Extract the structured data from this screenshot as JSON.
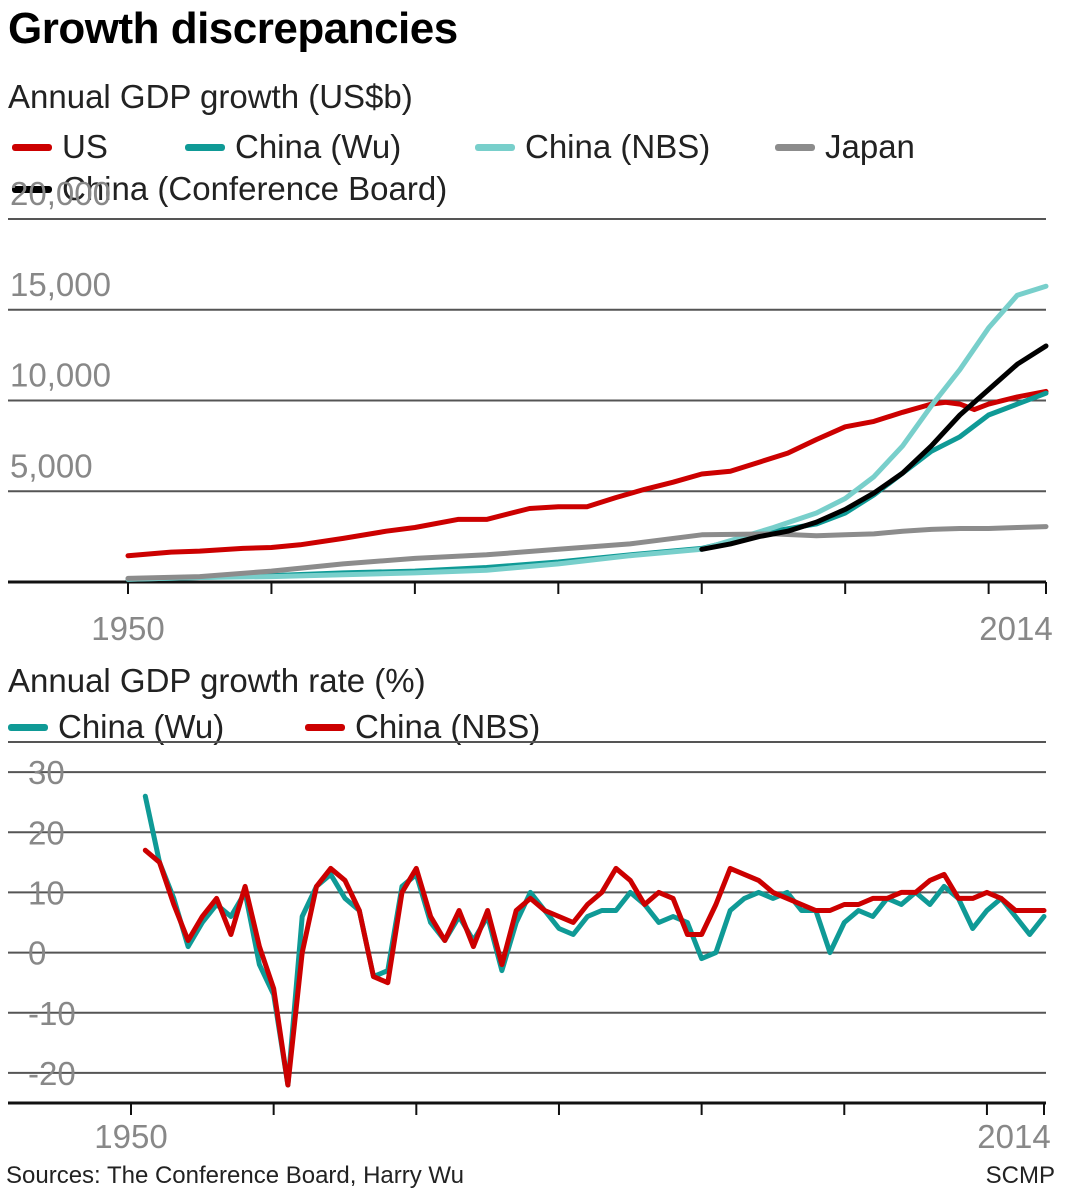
{
  "title": "Growth discrepancies",
  "sources": "Sources: The Conference Board, Harry Wu",
  "credit": "SCMP",
  "colors": {
    "us": "#cc0000",
    "china_wu": "#0f9a96",
    "china_nbs_light": "#78cfcb",
    "japan": "#8c8c8c",
    "china_cb": "#000000",
    "grid": "#555555",
    "axis": "#111111",
    "tick_text": "#888888"
  },
  "chart_data": [
    {
      "type": "line",
      "title": "Annual GDP growth (US$b)",
      "xlim": [
        1950,
        2014
      ],
      "ylim": [
        0,
        20000
      ],
      "y_ticks": [
        5000,
        10000,
        15000,
        20000
      ],
      "y_tick_labels": [
        "5,000",
        "10,000",
        "15,000",
        "20,000"
      ],
      "x_tick_labels": [
        "1950",
        "2014"
      ],
      "x_minor_ticks": [
        1950,
        1960,
        1970,
        1980,
        1990,
        2000,
        2010,
        2014
      ],
      "grid": true,
      "legend": "top",
      "series": [
        {
          "name": "US",
          "color_key": "us",
          "x": [
            1950,
            1953,
            1955,
            1958,
            1960,
            1962,
            1965,
            1968,
            1970,
            1973,
            1975,
            1978,
            1980,
            1982,
            1984,
            1986,
            1988,
            1990,
            1992,
            1994,
            1996,
            1998,
            2000,
            2002,
            2004,
            2006,
            2007,
            2008,
            2009,
            2010,
            2012,
            2014
          ],
          "y": [
            1450,
            1650,
            1700,
            1850,
            1900,
            2050,
            2400,
            2800,
            3000,
            3450,
            3450,
            4050,
            4150,
            4150,
            4650,
            5100,
            5500,
            5950,
            6100,
            6600,
            7100,
            7850,
            8550,
            8850,
            9350,
            9800,
            9900,
            9800,
            9500,
            9800,
            10200,
            10500
          ]
        },
        {
          "name": "China (Wu)",
          "color_key": "china_wu",
          "x": [
            1950,
            1955,
            1960,
            1965,
            1970,
            1975,
            1980,
            1985,
            1990,
            1995,
            1998,
            2000,
            2002,
            2004,
            2006,
            2008,
            2010,
            2012,
            2014
          ],
          "y": [
            150,
            250,
            350,
            500,
            600,
            800,
            1100,
            1500,
            1850,
            2800,
            3200,
            3800,
            4800,
            6000,
            7200,
            8000,
            9200,
            9800,
            10400
          ]
        },
        {
          "name": "China (NBS)",
          "color_key": "china_nbs_light",
          "x": [
            1950,
            1955,
            1960,
            1965,
            1970,
            1975,
            1980,
            1985,
            1990,
            1995,
            1998,
            2000,
            2002,
            2004,
            2006,
            2008,
            2010,
            2012,
            2014
          ],
          "y": [
            150,
            250,
            300,
            400,
            500,
            650,
            1000,
            1450,
            1800,
            3000,
            3800,
            4600,
            5800,
            7500,
            9700,
            11700,
            14000,
            15800,
            16300
          ]
        },
        {
          "name": "Japan",
          "color_key": "japan",
          "x": [
            1950,
            1955,
            1960,
            1965,
            1970,
            1975,
            1980,
            1985,
            1990,
            1995,
            1998,
            2000,
            2002,
            2004,
            2006,
            2008,
            2010,
            2012,
            2014
          ],
          "y": [
            200,
            300,
            600,
            1000,
            1300,
            1500,
            1800,
            2100,
            2600,
            2650,
            2550,
            2600,
            2650,
            2800,
            2900,
            2950,
            2950,
            3000,
            3050
          ]
        },
        {
          "name": "China (Conference Board)",
          "color_key": "china_cb",
          "x": [
            1990,
            1992,
            1994,
            1996,
            1998,
            2000,
            2002,
            2004,
            2006,
            2008,
            2010,
            2012,
            2014
          ],
          "y": [
            1800,
            2100,
            2500,
            2800,
            3300,
            4000,
            4900,
            6000,
            7500,
            9200,
            10600,
            12000,
            13000
          ]
        }
      ]
    },
    {
      "type": "line",
      "title": "Annual GDP growth rate (%)",
      "xlim": [
        1950,
        2014
      ],
      "ylim": [
        -25,
        35
      ],
      "y_ticks": [
        -20,
        -10,
        0,
        10,
        20,
        30
      ],
      "y_tick_labels": [
        "-20",
        "-10",
        "0",
        "10",
        "20",
        "30"
      ],
      "x_tick_labels": [
        "1950",
        "2014"
      ],
      "x_minor_ticks": [
        1950,
        1960,
        1970,
        1980,
        1990,
        2000,
        2010,
        2014
      ],
      "grid": true,
      "legend": "top",
      "series": [
        {
          "name": "China (Wu)",
          "color_key": "china_wu",
          "x": [
            1951,
            1952,
            1953,
            1954,
            1955,
            1956,
            1957,
            1958,
            1959,
            1960,
            1961,
            1962,
            1963,
            1964,
            1965,
            1966,
            1967,
            1968,
            1969,
            1970,
            1971,
            1972,
            1973,
            1974,
            1975,
            1976,
            1977,
            1978,
            1979,
            1980,
            1981,
            1982,
            1983,
            1984,
            1985,
            1986,
            1987,
            1988,
            1989,
            1990,
            1991,
            1992,
            1993,
            1994,
            1995,
            1996,
            1997,
            1998,
            1999,
            2000,
            2001,
            2002,
            2003,
            2004,
            2005,
            2006,
            2007,
            2008,
            2009,
            2010,
            2011,
            2012,
            2013,
            2014
          ],
          "y": [
            26,
            15,
            9,
            1,
            5,
            8,
            6,
            10,
            -2,
            -7,
            -22,
            6,
            11,
            13,
            9,
            7,
            -4,
            -3,
            11,
            13,
            5,
            2,
            6,
            2,
            6,
            -3,
            5,
            10,
            7,
            4,
            3,
            6,
            7,
            7,
            10,
            8,
            5,
            6,
            5,
            -1,
            0,
            7,
            9,
            10,
            9,
            10,
            7,
            7,
            0,
            5,
            7,
            6,
            9,
            8,
            10,
            8,
            11,
            9,
            4,
            7,
            9,
            6,
            3,
            6
          ]
        },
        {
          "name": "China (NBS)",
          "color_key": "us",
          "x": [
            1951,
            1952,
            1953,
            1954,
            1955,
            1956,
            1957,
            1958,
            1959,
            1960,
            1961,
            1962,
            1963,
            1964,
            1965,
            1966,
            1967,
            1968,
            1969,
            1970,
            1971,
            1972,
            1973,
            1974,
            1975,
            1976,
            1977,
            1978,
            1979,
            1980,
            1981,
            1982,
            1983,
            1984,
            1985,
            1986,
            1987,
            1988,
            1989,
            1990,
            1991,
            1992,
            1993,
            1994,
            1995,
            1996,
            1997,
            1998,
            1999,
            2000,
            2001,
            2002,
            2003,
            2004,
            2005,
            2006,
            2007,
            2008,
            2009,
            2010,
            2011,
            2012,
            2013,
            2014
          ],
          "y": [
            17,
            15,
            8,
            2,
            6,
            9,
            3,
            11,
            1,
            -6,
            -22,
            0,
            11,
            14,
            12,
            7,
            -4,
            -5,
            10,
            14,
            6,
            2,
            7,
            1,
            7,
            -2,
            7,
            9,
            7,
            6,
            5,
            8,
            10,
            14,
            12,
            8,
            10,
            9,
            3,
            3,
            8,
            14,
            13,
            12,
            10,
            9,
            8,
            7,
            7,
            8,
            8,
            9,
            9,
            10,
            10,
            12,
            13,
            9,
            9,
            10,
            9,
            7,
            7,
            7
          ]
        }
      ]
    }
  ]
}
